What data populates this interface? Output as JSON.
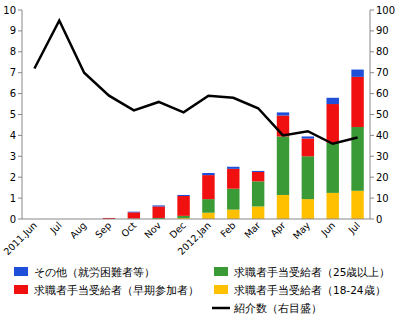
{
  "chart_data": {
    "type": "bar",
    "stacked": true,
    "grid": false,
    "legend": "bottom",
    "categories": [
      "2011.Jun",
      "Jul",
      "Aug",
      "Sep",
      "Oct",
      "Nov",
      "Dec",
      "2012.Jan",
      "Feb",
      "Mar",
      "Apr",
      "May",
      "Jun",
      "Jul"
    ],
    "ylim": [
      0,
      10
    ],
    "yticks": [
      0,
      1,
      2,
      3,
      4,
      5,
      6,
      7,
      8,
      9,
      10
    ],
    "y2lim": [
      0,
      100
    ],
    "y2ticks": [
      0,
      10,
      20,
      30,
      40,
      50,
      60,
      70,
      80,
      90,
      100
    ],
    "series": [
      {
        "name": "求職者手当受給者（18-24歳）",
        "type": "bar",
        "color": "#ffc000",
        "values": [
          0,
          0,
          0,
          0,
          0,
          0,
          0.05,
          0.3,
          0.45,
          0.6,
          1.15,
          0.95,
          1.25,
          1.35
        ]
      },
      {
        "name": "求職者手当受給者（25歳以上）",
        "type": "bar",
        "color": "#3a9a35",
        "values": [
          0,
          0,
          0,
          0,
          0.02,
          0.05,
          0.1,
          0.65,
          1.0,
          1.2,
          2.8,
          2.05,
          2.4,
          3.05
        ]
      },
      {
        "name": "求職者手当受給者（早期参加者）",
        "type": "bar",
        "color": "#f01010",
        "values": [
          0,
          0,
          0,
          0.05,
          0.3,
          0.55,
          0.95,
          1.15,
          0.95,
          0.45,
          1.0,
          0.85,
          1.85,
          2.4
        ]
      },
      {
        "name": "その他（就労困難者等）",
        "type": "bar",
        "color": "#1f4fd8",
        "values": [
          0,
          0,
          0,
          0,
          0.03,
          0.05,
          0.05,
          0.1,
          0.1,
          0.05,
          0.15,
          0.1,
          0.3,
          0.35
        ]
      },
      {
        "name": "紹介数（右目盛）",
        "type": "line",
        "axis": "y2",
        "color": "#000000",
        "line_style": "solid",
        "values": [
          72,
          95,
          70,
          59,
          52,
          56,
          51,
          59,
          58,
          53,
          40,
          42,
          36,
          39
        ]
      }
    ]
  }
}
